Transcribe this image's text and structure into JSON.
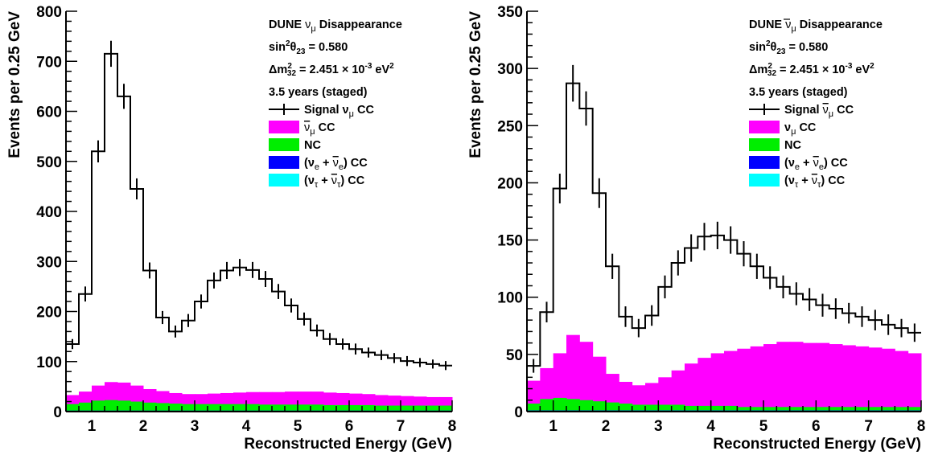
{
  "chart_data": [
    {
      "type": "histogram",
      "xlabel": "Reconstructed Energy (GeV)",
      "ylabel": "Events per 0.25 GeV",
      "xlim": [
        0.5,
        8
      ],
      "ylim": [
        0,
        800
      ],
      "xticks": [
        "1",
        "2",
        "3",
        "4",
        "5",
        "6",
        "7",
        "8"
      ],
      "yticks": [
        "0",
        "100",
        "200",
        "300",
        "400",
        "500",
        "600",
        "700",
        "800"
      ],
      "grid": false,
      "legend_position": "top-right",
      "bin_width": 0.25,
      "bin_edges_start": [
        0.5,
        0.75,
        1.0,
        1.25,
        1.5,
        1.75,
        2.0,
        2.25,
        2.5,
        2.75,
        3.0,
        3.25,
        3.5,
        3.75,
        4.0,
        4.25,
        4.5,
        4.75,
        5.0,
        5.25,
        5.5,
        5.75,
        6.0,
        6.25,
        6.5,
        6.75,
        7.0,
        7.25,
        7.5,
        7.75
      ],
      "annotations": {
        "experiment": "DUNE",
        "title": "ν",
        "title_sub": "μ",
        "title_rest": " Disappearance",
        "mixing_a": "sin",
        "mixing_sup": "2",
        "mixing_b": "θ",
        "mixing_sub": "23",
        "mixing_val": " = 0.580",
        "dm_a": "Δm",
        "dm_sup": "2",
        "dm_sub": "32",
        "dm_val": " = 2.451 × 10",
        "dm_exp": "-3",
        "dm_unit": " eV",
        "dm_unit_sup": "2",
        "exposure": "3.5 years (staged)"
      },
      "legend": [
        {
          "kind": "line",
          "color": "#000000",
          "label": [
            [
              "Signal ν",
              ""
            ],
            [
              "μ",
              "sub"
            ],
            [
              " CC",
              ""
            ]
          ]
        },
        {
          "kind": "box",
          "color": "#ff00ff",
          "label": [
            [
              "ν",
              "bar"
            ],
            [
              "μ",
              "sub"
            ],
            [
              " CC",
              ""
            ]
          ]
        },
        {
          "kind": "box",
          "color": "#00ee00",
          "label": [
            [
              "NC",
              ""
            ]
          ]
        },
        {
          "kind": "box",
          "color": "#0000ff",
          "label": [
            [
              "(ν",
              ""
            ],
            [
              "e",
              "sub"
            ],
            [
              " + ",
              ""
            ],
            [
              "ν",
              "bar"
            ],
            [
              "e",
              "sub"
            ],
            [
              ") CC",
              ""
            ]
          ]
        },
        {
          "kind": "box",
          "color": "#00ffff",
          "label": [
            [
              "(ν",
              ""
            ],
            [
              "τ",
              "sub"
            ],
            [
              " + ",
              ""
            ],
            [
              "ν",
              "bar"
            ],
            [
              "τ",
              "sub"
            ],
            [
              ") CC",
              ""
            ]
          ]
        }
      ],
      "series": [
        {
          "kind": "signal_total",
          "color": "#000000",
          "values": [
            135,
            235,
            520,
            715,
            630,
            445,
            282,
            188,
            160,
            182,
            220,
            262,
            282,
            288,
            283,
            265,
            240,
            212,
            185,
            162,
            145,
            135,
            125,
            118,
            113,
            107,
            101,
            98,
            95,
            92
          ],
          "errors": [
            10,
            15,
            22,
            26,
            25,
            21,
            16,
            13,
            12,
            13,
            14,
            16,
            17,
            17,
            16,
            16,
            15,
            14,
            13,
            12,
            12,
            11,
            11,
            10,
            10,
            10,
            10,
            9,
            9,
            9
          ]
        },
        {
          "kind": "stack",
          "color": "#ff00ff",
          "values": [
            18,
            22,
            30,
            36,
            36,
            32,
            27,
            24,
            21,
            20,
            20,
            21,
            22,
            23,
            24,
            25,
            25,
            26,
            26,
            26,
            25,
            24,
            23,
            22,
            21,
            20,
            19,
            18,
            17,
            17
          ]
        },
        {
          "kind": "stack",
          "color": "#00ee00",
          "values": [
            13,
            16,
            20,
            21,
            20,
            18,
            16,
            15,
            14,
            13,
            13,
            13,
            13,
            13,
            13,
            12,
            12,
            12,
            12,
            12,
            11,
            11,
            11,
            11,
            10,
            10,
            10,
            10,
            10,
            10
          ]
        },
        {
          "kind": "stack",
          "color": "#0000ff",
          "values": [
            2,
            2,
            2,
            2,
            2,
            2,
            2,
            2,
            2,
            2,
            2,
            2,
            2,
            2,
            2,
            2,
            2,
            2,
            2,
            2,
            2,
            2,
            2,
            2,
            2,
            2,
            2,
            2,
            2,
            2
          ]
        },
        {
          "kind": "stack",
          "color": "#00ffff",
          "values": [
            0,
            0,
            0,
            0,
            0,
            0,
            0,
            0,
            0,
            0,
            0,
            0,
            0,
            0,
            0,
            0,
            0,
            0,
            0,
            0,
            0,
            0,
            0,
            0,
            0,
            0,
            0,
            0,
            0,
            0
          ]
        }
      ]
    },
    {
      "type": "histogram",
      "xlabel": "Reconstructed Energy (GeV)",
      "ylabel": "Events per 0.25 GeV",
      "xlim": [
        0.5,
        8
      ],
      "ylim": [
        0,
        350
      ],
      "xticks": [
        "1",
        "2",
        "3",
        "4",
        "5",
        "6",
        "7",
        "8"
      ],
      "yticks": [
        "0",
        "50",
        "100",
        "150",
        "200",
        "250",
        "300",
        "350"
      ],
      "grid": false,
      "legend_position": "top-right",
      "bin_width": 0.25,
      "bin_edges_start": [
        0.5,
        0.75,
        1.0,
        1.25,
        1.5,
        1.75,
        2.0,
        2.25,
        2.5,
        2.75,
        3.0,
        3.25,
        3.5,
        3.75,
        4.0,
        4.25,
        4.5,
        4.75,
        5.0,
        5.25,
        5.5,
        5.75,
        6.0,
        6.25,
        6.5,
        6.75,
        7.0,
        7.25,
        7.5,
        7.75
      ],
      "annotations": {
        "experiment": "DUNE",
        "title": "ν",
        "title_bar": true,
        "title_sub": "μ",
        "title_rest": " Disappearance",
        "mixing_a": "sin",
        "mixing_sup": "2",
        "mixing_b": "θ",
        "mixing_sub": "23",
        "mixing_val": " = 0.580",
        "dm_a": "Δm",
        "dm_sup": "2",
        "dm_sub": "32",
        "dm_val": " = 2.451 × 10",
        "dm_exp": "-3",
        "dm_unit": " eV",
        "dm_unit_sup": "2",
        "exposure": "3.5 years (staged)"
      },
      "legend": [
        {
          "kind": "line",
          "color": "#000000",
          "label": [
            [
              "Signal ",
              ""
            ],
            [
              "ν",
              "bar"
            ],
            [
              "μ",
              "sub"
            ],
            [
              " CC",
              ""
            ]
          ]
        },
        {
          "kind": "box",
          "color": "#ff00ff",
          "label": [
            [
              "ν",
              ""
            ],
            [
              "μ",
              "sub"
            ],
            [
              " CC",
              ""
            ]
          ]
        },
        {
          "kind": "box",
          "color": "#00ee00",
          "label": [
            [
              "NC",
              ""
            ]
          ]
        },
        {
          "kind": "box",
          "color": "#0000ff",
          "label": [
            [
              "(ν",
              ""
            ],
            [
              "e",
              "sub"
            ],
            [
              " + ",
              ""
            ],
            [
              "ν",
              "bar"
            ],
            [
              "e",
              "sub"
            ],
            [
              ") CC",
              ""
            ]
          ]
        },
        {
          "kind": "box",
          "color": "#00ffff",
          "label": [
            [
              "(ν",
              ""
            ],
            [
              "τ",
              "sub"
            ],
            [
              " + ",
              ""
            ],
            [
              "ν",
              "bar"
            ],
            [
              "τ",
              "sub"
            ],
            [
              ") CC",
              ""
            ]
          ]
        }
      ],
      "series": [
        {
          "kind": "signal_total",
          "color": "#000000",
          "values": [
            40,
            87,
            195,
            287,
            265,
            191,
            127,
            83,
            73,
            84,
            109,
            130,
            143,
            153,
            154,
            150,
            138,
            127,
            117,
            109,
            103,
            98,
            93,
            90,
            86,
            83,
            80,
            76,
            73,
            69
          ],
          "errors": [
            6,
            9,
            13,
            16,
            15,
            13,
            11,
            9,
            8,
            9,
            10,
            11,
            12,
            12,
            12,
            12,
            11,
            11,
            10,
            10,
            10,
            10,
            10,
            9,
            9,
            9,
            9,
            9,
            8,
            8
          ]
        },
        {
          "kind": "stack",
          "color": "#ff00ff",
          "values": [
            20,
            27,
            39,
            56,
            51,
            39,
            25,
            19,
            17,
            19,
            24,
            30,
            37,
            42,
            46,
            48,
            51,
            53,
            55,
            57,
            57,
            56,
            56,
            55,
            54,
            53,
            52,
            51,
            49,
            47
          ]
        },
        {
          "kind": "stack",
          "color": "#00ee00",
          "values": [
            6,
            10,
            11,
            10,
            9,
            8,
            7,
            6,
            5,
            5,
            5,
            5,
            4,
            4,
            4,
            4,
            3,
            3,
            3,
            3,
            3,
            3,
            3,
            3,
            3,
            3,
            3,
            3,
            3,
            3
          ]
        },
        {
          "kind": "stack",
          "color": "#0000ff",
          "values": [
            1,
            1,
            1,
            1,
            1,
            1,
            1,
            1,
            1,
            1,
            1,
            1,
            1,
            1,
            1,
            1,
            1,
            1,
            1,
            1,
            1,
            1,
            1,
            1,
            1,
            1,
            1,
            1,
            1,
            1
          ]
        },
        {
          "kind": "stack",
          "color": "#00ffff",
          "values": [
            0,
            0,
            0,
            0,
            0,
            0,
            0,
            0,
            0,
            0,
            0,
            0,
            0,
            0,
            0,
            0,
            0,
            0,
            0,
            0,
            0,
            0,
            0,
            0,
            0,
            0,
            0,
            0,
            0,
            0
          ]
        }
      ]
    }
  ]
}
